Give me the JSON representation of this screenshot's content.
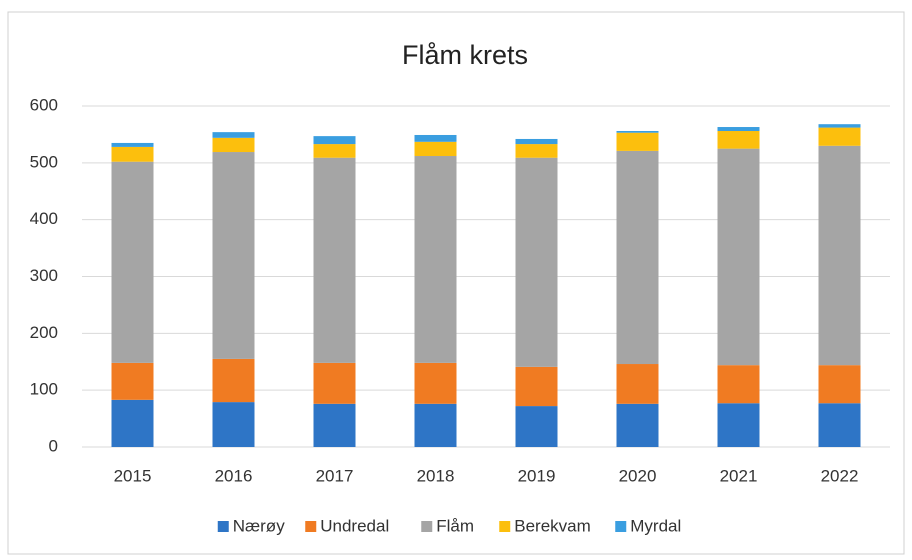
{
  "chart_data": {
    "type": "bar",
    "stacked": true,
    "title": "Flåm krets",
    "categories": [
      "2015",
      "2016",
      "2017",
      "2018",
      "2019",
      "2020",
      "2021",
      "2022"
    ],
    "series": [
      {
        "name": "Nærøy",
        "color": "#2e75c6",
        "values": [
          83,
          79,
          76,
          76,
          72,
          76,
          77,
          77
        ]
      },
      {
        "name": "Undredal",
        "color": "#f07b22",
        "values": [
          65,
          76,
          72,
          72,
          69,
          70,
          67,
          67
        ]
      },
      {
        "name": "Flåm",
        "color": "#a5a5a5",
        "values": [
          354,
          364,
          361,
          364,
          368,
          375,
          381,
          386
        ]
      },
      {
        "name": "Berekvam",
        "color": "#fcbf0d",
        "values": [
          26,
          25,
          24,
          25,
          24,
          32,
          31,
          32
        ]
      },
      {
        "name": "Myrdal",
        "color": "#3a9ee0",
        "values": [
          7,
          10,
          14,
          12,
          9,
          3,
          7,
          6
        ]
      }
    ],
    "ylim": [
      0,
      600
    ],
    "yticks": [
      0,
      100,
      200,
      300,
      400,
      500,
      600
    ],
    "grid": true,
    "legend": "bottom"
  }
}
